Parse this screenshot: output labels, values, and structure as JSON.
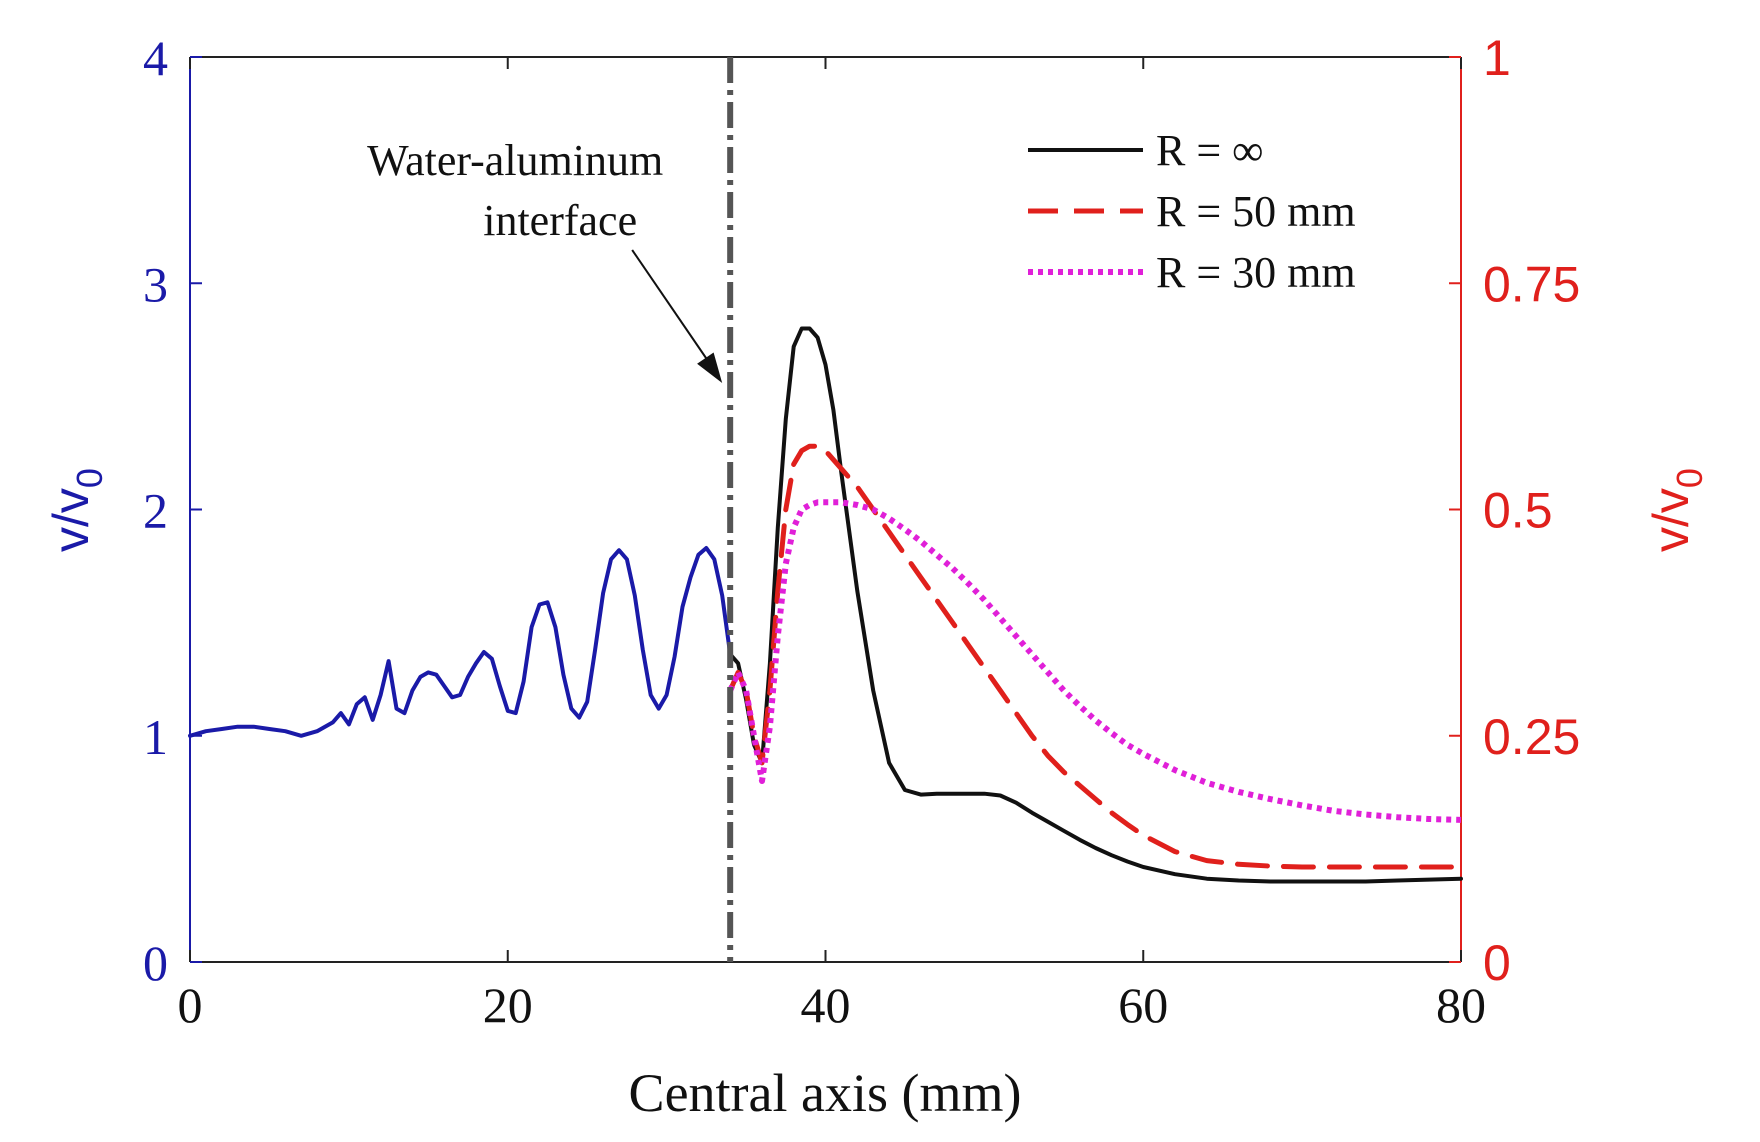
{
  "chart_data": {
    "type": "line",
    "title": "",
    "xlabel": "Central axis (mm)",
    "xlim": [
      0,
      80
    ],
    "x_ticks": [
      "0",
      "20",
      "40",
      "60",
      "80"
    ],
    "y_left": {
      "label_main": "v/v",
      "label_sub": "0",
      "lim": [
        0,
        4
      ],
      "ticks": [
        "0",
        "1",
        "2",
        "3",
        "4"
      ],
      "color": "#1a1aa8"
    },
    "y_right": {
      "label_main": "v/v",
      "label_sub": "0",
      "lim": [
        0,
        1
      ],
      "ticks": [
        "0",
        "0.25",
        "0.5",
        "0.75",
        "1"
      ],
      "color": "#e0201c"
    },
    "grid": false,
    "legend_position": "top-right",
    "interface": {
      "x": 34,
      "label_line1": "Water-aluminum",
      "label_line2": "interface",
      "color": "#555555"
    },
    "series": [
      {
        "name": "water",
        "axis": "left",
        "legend": false,
        "color": "#1a1aa8",
        "style": "solid",
        "x": [
          0,
          1,
          2,
          3,
          4,
          5,
          6,
          7,
          8,
          9,
          9.5,
          10,
          10.5,
          11,
          11.5,
          12,
          12.5,
          13,
          13.5,
          14,
          14.5,
          15,
          15.5,
          16,
          16.5,
          17,
          17.5,
          18,
          18.5,
          19,
          19.5,
          20,
          20.5,
          21,
          21.5,
          22,
          22.5,
          23,
          23.5,
          24,
          24.5,
          25,
          25.5,
          26,
          26.5,
          27,
          27.5,
          28,
          28.5,
          29,
          29.5,
          30,
          30.5,
          31,
          31.5,
          32,
          32.5,
          33,
          33.5,
          34
        ],
        "values": [
          1.0,
          1.02,
          1.03,
          1.04,
          1.04,
          1.03,
          1.02,
          1.0,
          1.02,
          1.06,
          1.1,
          1.05,
          1.14,
          1.17,
          1.07,
          1.18,
          1.33,
          1.12,
          1.1,
          1.2,
          1.26,
          1.28,
          1.27,
          1.22,
          1.17,
          1.18,
          1.26,
          1.32,
          1.37,
          1.34,
          1.22,
          1.11,
          1.1,
          1.24,
          1.48,
          1.58,
          1.59,
          1.48,
          1.27,
          1.12,
          1.08,
          1.15,
          1.38,
          1.63,
          1.78,
          1.82,
          1.78,
          1.62,
          1.38,
          1.18,
          1.12,
          1.18,
          1.35,
          1.57,
          1.7,
          1.8,
          1.83,
          1.78,
          1.62,
          1.36
        ]
      },
      {
        "name": "R = ∞",
        "axis": "right",
        "legend": true,
        "color": "#111111",
        "style": "solid",
        "x": [
          34,
          34.5,
          35,
          35.5,
          36,
          36.5,
          37,
          37.5,
          38,
          38.5,
          39,
          39.5,
          40,
          40.5,
          41,
          42,
          43,
          44,
          45,
          46,
          47,
          48,
          49,
          50,
          51,
          52,
          53,
          54,
          55,
          56,
          57,
          58,
          59,
          60,
          62,
          64,
          66,
          68,
          70,
          72,
          74,
          76,
          78,
          80
        ],
        "values": [
          0.34,
          0.33,
          0.29,
          0.24,
          0.22,
          0.33,
          0.48,
          0.6,
          0.68,
          0.7,
          0.7,
          0.69,
          0.66,
          0.61,
          0.54,
          0.41,
          0.3,
          0.22,
          0.19,
          0.185,
          0.186,
          0.186,
          0.186,
          0.186,
          0.184,
          0.176,
          0.165,
          0.155,
          0.145,
          0.135,
          0.126,
          0.118,
          0.111,
          0.105,
          0.097,
          0.092,
          0.09,
          0.089,
          0.089,
          0.089,
          0.089,
          0.09,
          0.091,
          0.092
        ]
      },
      {
        "name": "R = 50 mm",
        "axis": "right",
        "legend": true,
        "color": "#e0201c",
        "style": "dashed",
        "x": [
          34,
          34.5,
          35,
          35.5,
          36,
          36.5,
          37,
          37.5,
          38,
          38.5,
          39,
          39.5,
          40,
          40.5,
          41,
          42,
          43,
          44,
          45,
          46,
          47,
          48,
          49,
          50,
          51,
          52,
          53,
          54,
          55,
          56,
          57,
          58,
          59,
          60,
          62,
          64,
          66,
          68,
          70,
          72,
          74,
          76,
          78,
          80
        ],
        "values": [
          0.3,
          0.32,
          0.3,
          0.25,
          0.22,
          0.3,
          0.41,
          0.5,
          0.55,
          0.565,
          0.57,
          0.57,
          0.565,
          0.555,
          0.545,
          0.525,
          0.5,
          0.475,
          0.45,
          0.425,
          0.4,
          0.375,
          0.35,
          0.325,
          0.3,
          0.275,
          0.25,
          0.228,
          0.21,
          0.195,
          0.18,
          0.165,
          0.152,
          0.14,
          0.122,
          0.112,
          0.108,
          0.106,
          0.105,
          0.105,
          0.105,
          0.105,
          0.105,
          0.105
        ]
      },
      {
        "name": "R = 30 mm",
        "axis": "right",
        "legend": true,
        "color": "#e020d8",
        "style": "dotted",
        "x": [
          34,
          34.5,
          35,
          35.5,
          36,
          36.5,
          37,
          37.5,
          38,
          38.5,
          39,
          39.5,
          40,
          40.5,
          41,
          42,
          43,
          44,
          45,
          46,
          47,
          48,
          49,
          50,
          51,
          52,
          53,
          54,
          55,
          56,
          57,
          58,
          59,
          60,
          62,
          64,
          66,
          68,
          70,
          72,
          74,
          76,
          78,
          80
        ],
        "values": [
          0.3,
          0.32,
          0.3,
          0.25,
          0.2,
          0.26,
          0.36,
          0.44,
          0.48,
          0.5,
          0.505,
          0.508,
          0.508,
          0.508,
          0.508,
          0.505,
          0.5,
          0.49,
          0.478,
          0.465,
          0.45,
          0.435,
          0.418,
          0.4,
          0.38,
          0.36,
          0.34,
          0.32,
          0.3,
          0.283,
          0.267,
          0.253,
          0.24,
          0.23,
          0.212,
          0.198,
          0.188,
          0.18,
          0.173,
          0.167,
          0.163,
          0.16,
          0.158,
          0.157
        ]
      }
    ]
  }
}
